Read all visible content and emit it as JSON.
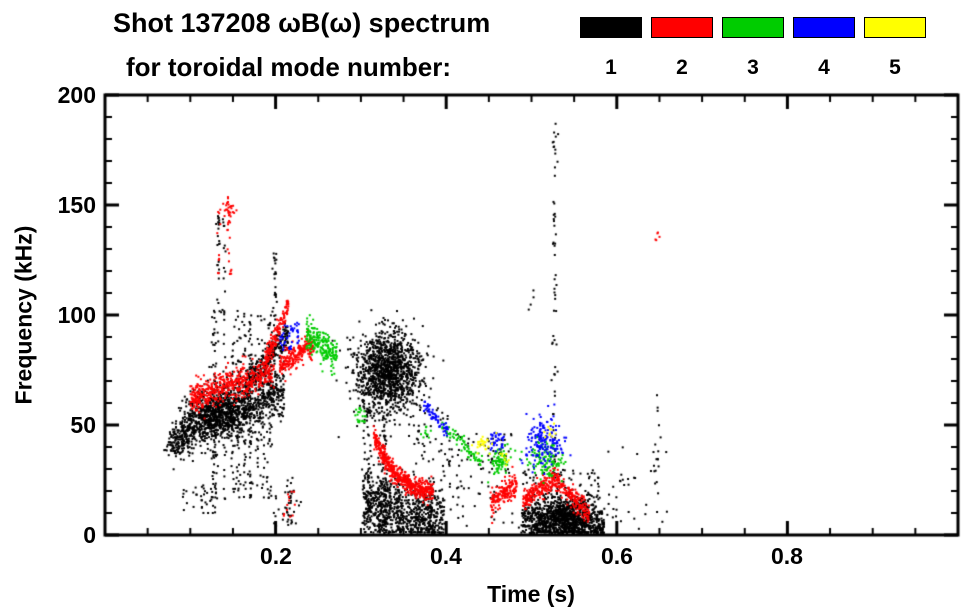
{
  "title": {
    "line1": "Shot 137208 ωB(ω) spectrum",
    "line2": "for toroidal mode number:"
  },
  "legend": {
    "items": [
      {
        "label": "1",
        "color": "#000000"
      },
      {
        "label": "2",
        "color": "#ff0000"
      },
      {
        "label": "3",
        "color": "#00cc00"
      },
      {
        "label": "4",
        "color": "#0000ff"
      },
      {
        "label": "5",
        "color": "#ffff00"
      }
    ]
  },
  "chart_data": {
    "type": "scatter",
    "title": "Shot 137208 ωB(ω) spectrum for toroidal mode number: 1 2 3 4 5",
    "xlabel": "Time (s)",
    "ylabel": "Frequency (kHz)",
    "xlim": [
      0.0,
      1.0
    ],
    "ylim": [
      0,
      200
    ],
    "x_ticks": [
      "0.2",
      "0.4",
      "0.6",
      "0.8"
    ],
    "x_tick_values": [
      0.2,
      0.4,
      0.6,
      0.8
    ],
    "x_minor_step": 0.05,
    "y_ticks": [
      "0",
      "50",
      "100",
      "150",
      "200"
    ],
    "y_tick_values": [
      0,
      50,
      100,
      150,
      200
    ],
    "y_minor_step": 10,
    "grid": false,
    "legend_position": "top-right",
    "series": [
      {
        "name": "toroidal mode n=1",
        "mode": 1,
        "color": "#000000",
        "clusters": [
          {
            "type": "blob",
            "t": [
              0.073,
              0.097
            ],
            "f": [
              36,
              50
            ],
            "n": 140
          },
          {
            "type": "dots",
            "t": [
              0.09,
              0.13
            ],
            "f": [
              10,
              24
            ],
            "n": 35
          },
          {
            "type": "band",
            "t": [
              0.09,
              0.21
            ],
            "f": [
              48,
              66
            ],
            "sd": 6,
            "n": 900
          },
          {
            "type": "blob",
            "t": [
              0.1,
              0.165
            ],
            "f": [
              46,
              64
            ],
            "n": 500
          },
          {
            "type": "vstreaks",
            "t": [
              0.115,
              0.205
            ],
            "f": [
              16,
              102
            ],
            "k": 14,
            "n": 38
          },
          {
            "type": "vstreaks",
            "t": [
              0.132,
              0.149
            ],
            "f": [
              100,
              150
            ],
            "k": 3,
            "n": 18
          },
          {
            "type": "band",
            "t": [
              0.165,
              0.215
            ],
            "f": [
              68,
              92
            ],
            "sd": 3,
            "n": 260
          },
          {
            "type": "vstreaks",
            "t": [
              0.193,
              0.203
            ],
            "f": [
              95,
              128
            ],
            "k": 2,
            "n": 16
          },
          {
            "type": "vstreaks",
            "t": [
              0.214,
              0.222
            ],
            "f": [
              6,
              26
            ],
            "k": 2,
            "n": 16
          },
          {
            "type": "dots",
            "t": [
              0.195,
              0.23
            ],
            "f": [
              4,
              22
            ],
            "n": 25
          },
          {
            "type": "blob",
            "t": [
              0.298,
              0.365
            ],
            "f": [
              58,
              90
            ],
            "n": 1300
          },
          {
            "type": "vstreaks",
            "t": [
              0.297,
              0.33
            ],
            "f": [
              2,
              58
            ],
            "k": 6,
            "n": 30
          },
          {
            "type": "band",
            "t": [
              0.303,
              0.398
            ],
            "f": [
              14,
              5
            ],
            "sd": 8,
            "n": 800,
            "clip0": true
          },
          {
            "type": "vstreaks",
            "t": [
              0.308,
              0.392
            ],
            "f": [
              0,
              26
            ],
            "k": 12,
            "n": 22
          },
          {
            "type": "dots",
            "t": [
              0.355,
              0.405
            ],
            "f": [
              28,
              58
            ],
            "n": 45
          },
          {
            "type": "dots",
            "t": [
              0.4,
              0.478
            ],
            "f": [
              4,
              46
            ],
            "n": 65
          },
          {
            "type": "dots",
            "t": [
              0.44,
              0.47
            ],
            "f": [
              28,
              46
            ],
            "n": 25
          },
          {
            "type": "vline",
            "t": [
              0.525,
              0.529
            ],
            "f": [
              0,
              190
            ],
            "n": 95
          },
          {
            "type": "band",
            "t": [
              0.488,
              0.585
            ],
            "f": [
              6,
              3
            ],
            "sd": 5,
            "n": 800,
            "clip0": true
          },
          {
            "type": "blob",
            "t": [
              0.508,
              0.572
            ],
            "f": [
              2,
              16
            ],
            "n": 650
          },
          {
            "type": "dots",
            "t": [
              0.49,
              0.58
            ],
            "f": [
              16,
              30
            ],
            "n": 70
          },
          {
            "type": "dots",
            "t": [
              0.495,
              0.505
            ],
            "f": [
              100,
              112
            ],
            "n": 4
          },
          {
            "type": "dots",
            "t": [
              0.59,
              0.66
            ],
            "f": [
              0,
              40
            ],
            "n": 30
          },
          {
            "type": "vline",
            "t": [
              0.646,
              0.65
            ],
            "f": [
              0,
              66
            ],
            "n": 26
          }
        ]
      },
      {
        "name": "toroidal mode n=2",
        "mode": 2,
        "color": "#ff0000",
        "clusters": [
          {
            "type": "band",
            "t": [
              0.1,
              0.198
            ],
            "f": [
              62,
              74
            ],
            "sd": 3.5,
            "n": 520
          },
          {
            "type": "vstreaks",
            "t": [
              0.133,
              0.15
            ],
            "f": [
              118,
              152
            ],
            "k": 3,
            "n": 14
          },
          {
            "type": "blob",
            "t": [
              0.14,
              0.15
            ],
            "f": [
              143,
              153
            ],
            "n": 25
          },
          {
            "type": "band",
            "t": [
              0.185,
              0.215
            ],
            "f": [
              76,
              104
            ],
            "sd": 2.5,
            "n": 160
          },
          {
            "type": "band",
            "t": [
              0.205,
              0.245
            ],
            "f": [
              77,
              87
            ],
            "sd": 3,
            "n": 220
          },
          {
            "type": "dots",
            "t": [
              0.206,
              0.226
            ],
            "f": [
              8,
              20
            ],
            "n": 12
          },
          {
            "type": "chirp",
            "t": [
              0.315,
              0.385
            ],
            "f": [
              46,
              18
            ],
            "tau": 0.35,
            "sd": 2.5,
            "n": 520
          },
          {
            "type": "band",
            "t": [
              0.452,
              0.483
            ],
            "f": [
              14,
              24
            ],
            "sd": 3,
            "n": 170
          },
          {
            "type": "band",
            "t": [
              0.49,
              0.527
            ],
            "f": [
              15,
              26
            ],
            "sd": 2.5,
            "n": 190
          },
          {
            "type": "band",
            "t": [
              0.527,
              0.568
            ],
            "f": [
              26,
              9
            ],
            "sd": 2.5,
            "n": 190
          },
          {
            "type": "dots",
            "t": [
              0.644,
              0.652
            ],
            "f": [
              132,
              138
            ],
            "n": 5
          }
        ]
      },
      {
        "name": "toroidal mode n=3",
        "mode": 3,
        "color": "#00cc00",
        "clusters": [
          {
            "type": "band",
            "t": [
              0.236,
              0.272
            ],
            "f": [
              91,
              81
            ],
            "sd": 3.5,
            "n": 200
          },
          {
            "type": "dots",
            "t": [
              0.293,
              0.307
            ],
            "f": [
              50,
              58
            ],
            "n": 22
          },
          {
            "type": "dots",
            "t": [
              0.368,
              0.382
            ],
            "f": [
              44,
              50
            ],
            "n": 10
          },
          {
            "type": "band",
            "t": [
              0.395,
              0.442
            ],
            "f": [
              50,
              33
            ],
            "sd": 1.5,
            "n": 70
          },
          {
            "type": "blob",
            "t": [
              0.452,
              0.472
            ],
            "f": [
              28,
              40
            ],
            "n": 80
          },
          {
            "type": "blob",
            "t": [
              0.497,
              0.537
            ],
            "f": [
              26,
              42
            ],
            "n": 130
          }
        ]
      },
      {
        "name": "toroidal mode n=4",
        "mode": 4,
        "color": "#0000ff",
        "clusters": [
          {
            "type": "dots",
            "t": [
              0.205,
              0.228
            ],
            "f": [
              84,
              97
            ],
            "n": 45
          },
          {
            "type": "band",
            "t": [
              0.373,
              0.402
            ],
            "f": [
              60,
              47
            ],
            "sd": 1.5,
            "n": 60
          },
          {
            "type": "dots",
            "t": [
              0.452,
              0.468
            ],
            "f": [
              38,
              47
            ],
            "n": 35
          },
          {
            "type": "blob",
            "t": [
              0.496,
              0.533
            ],
            "f": [
              33,
              52
            ],
            "n": 170
          }
        ]
      },
      {
        "name": "toroidal mode n=5",
        "mode": 5,
        "color": "#ffff00",
        "clusters": [
          {
            "type": "blob",
            "t": [
              0.433,
              0.453
            ],
            "f": [
              37,
              45
            ],
            "n": 28
          },
          {
            "type": "dots",
            "t": [
              0.463,
              0.474
            ],
            "f": [
              31,
              37
            ],
            "n": 10
          },
          {
            "type": "dots",
            "t": [
              0.512,
              0.53
            ],
            "f": [
              44,
              51
            ],
            "n": 10
          }
        ]
      }
    ]
  }
}
